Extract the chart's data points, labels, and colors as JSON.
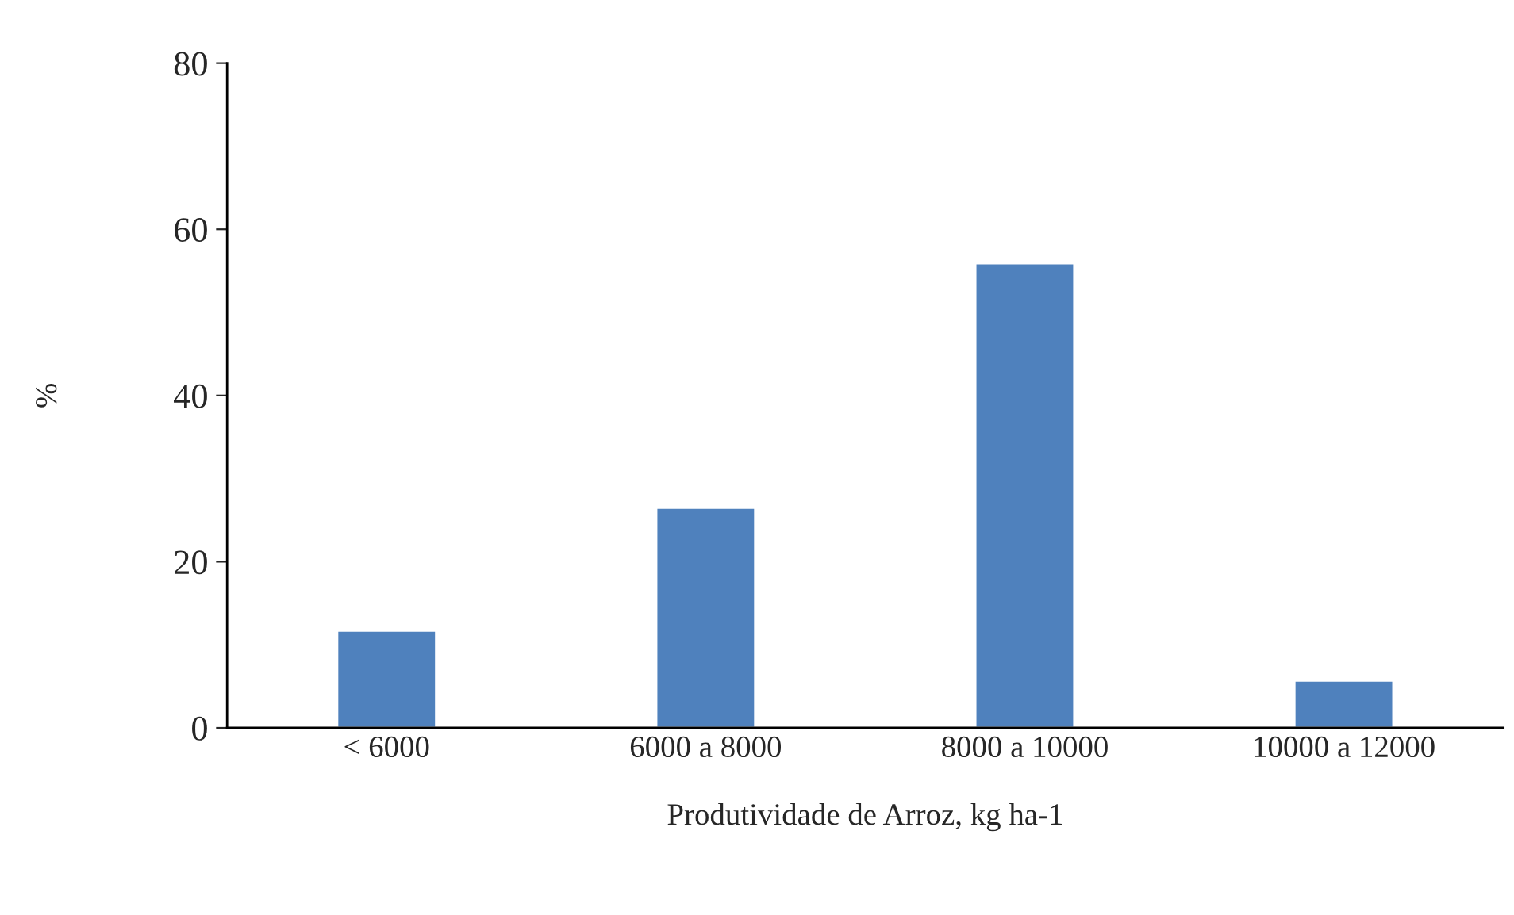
{
  "chart_data": {
    "type": "bar",
    "xlabel": "Produtividade de Arroz, kg ha-1",
    "ylabel": "%",
    "categories": [
      "< 6000",
      "6000 a 8000",
      "8000 a 10000",
      "10000 a 12000"
    ],
    "values": [
      11.7,
      26.5,
      55.9,
      5.7
    ],
    "color": "#4f81bd",
    "ylim": [
      0,
      80
    ],
    "yticks": [
      0,
      20,
      40,
      60,
      80
    ],
    "grid": false
  }
}
